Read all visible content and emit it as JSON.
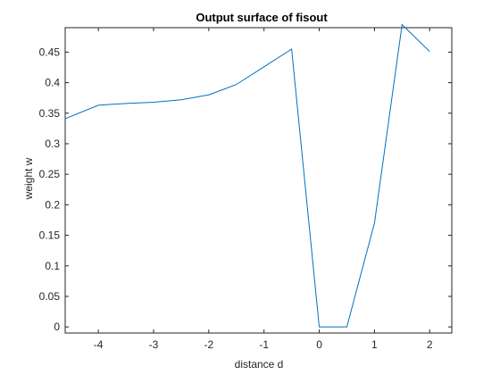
{
  "chart_data": {
    "type": "line",
    "title": "Output surface of fisout",
    "xlabel": "distance d",
    "ylabel": "weight w",
    "xlim": [
      -4.6,
      2.4
    ],
    "ylim": [
      -0.01,
      0.49
    ],
    "xticks": [
      -4,
      -3,
      -2,
      -1,
      0,
      1,
      2
    ],
    "xtick_labels": [
      "-4",
      "-3",
      "-2",
      "-1",
      "0",
      "1",
      "2"
    ],
    "yticks": [
      0,
      0.05,
      0.1,
      0.15,
      0.2,
      0.25,
      0.3,
      0.35,
      0.4,
      0.45
    ],
    "ytick_labels": [
      "0",
      "0.05",
      "0.1",
      "0.15",
      "0.2",
      "0.25",
      "0.3",
      "0.35",
      "0.4",
      "0.45"
    ],
    "grid": false,
    "line_color": "#0072bd",
    "series": [
      {
        "x": [
          -4.6,
          -4.0,
          -3.5,
          -3.0,
          -2.5,
          -2.0,
          -1.5,
          -1.0,
          -0.5,
          0.0,
          0.5,
          1.0,
          1.5,
          2.0
        ],
        "y": [
          0.341,
          0.363,
          0.366,
          0.368,
          0.372,
          0.38,
          0.397,
          0.426,
          0.455,
          0.0,
          0.0,
          0.17,
          0.495,
          0.451
        ]
      }
    ]
  }
}
